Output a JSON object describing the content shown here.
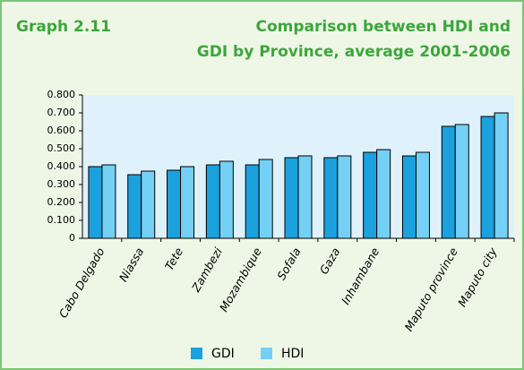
{
  "chart_data": {
    "type": "bar",
    "label": "Graph 2.11",
    "title": [
      "Comparison between HDI and",
      "GDI by Province, average 2001-2006"
    ],
    "categories": [
      "Cabo Delgado",
      "Niassa",
      "Tete",
      "Zambezi",
      "Mozambique",
      "Sofala",
      "Gaza",
      "Inhambane",
      null,
      "Maputo province",
      "Maputo  city"
    ],
    "series": [
      {
        "name": "GDI",
        "color": "#1ba1dd",
        "values": [
          0.4,
          0.355,
          0.38,
          0.41,
          0.41,
          0.45,
          0.45,
          0.48,
          0.46,
          0.625,
          0.68
        ]
      },
      {
        "name": "HDI",
        "color": "#74d0f4",
        "values": [
          0.41,
          0.375,
          0.4,
          0.43,
          0.44,
          0.46,
          0.46,
          0.495,
          0.48,
          0.635,
          0.7
        ]
      }
    ],
    "ylim": [
      0,
      0.8
    ],
    "yticks": [
      0,
      {
        "value": 0.1,
        "label": "0.100"
      },
      {
        "value": 0.2,
        "label": "0.200"
      },
      {
        "value": 0.3,
        "label": "0.300"
      },
      {
        "value": 0.4,
        "label": "0.400"
      },
      {
        "value": 0.5,
        "label": "0.500"
      },
      {
        "value": 0.6,
        "label": "0.600"
      },
      {
        "value": 0.7,
        "label": "0.700"
      },
      {
        "value": 0.8,
        "label": "0.800"
      }
    ],
    "grid": false,
    "legend": "bottom"
  }
}
